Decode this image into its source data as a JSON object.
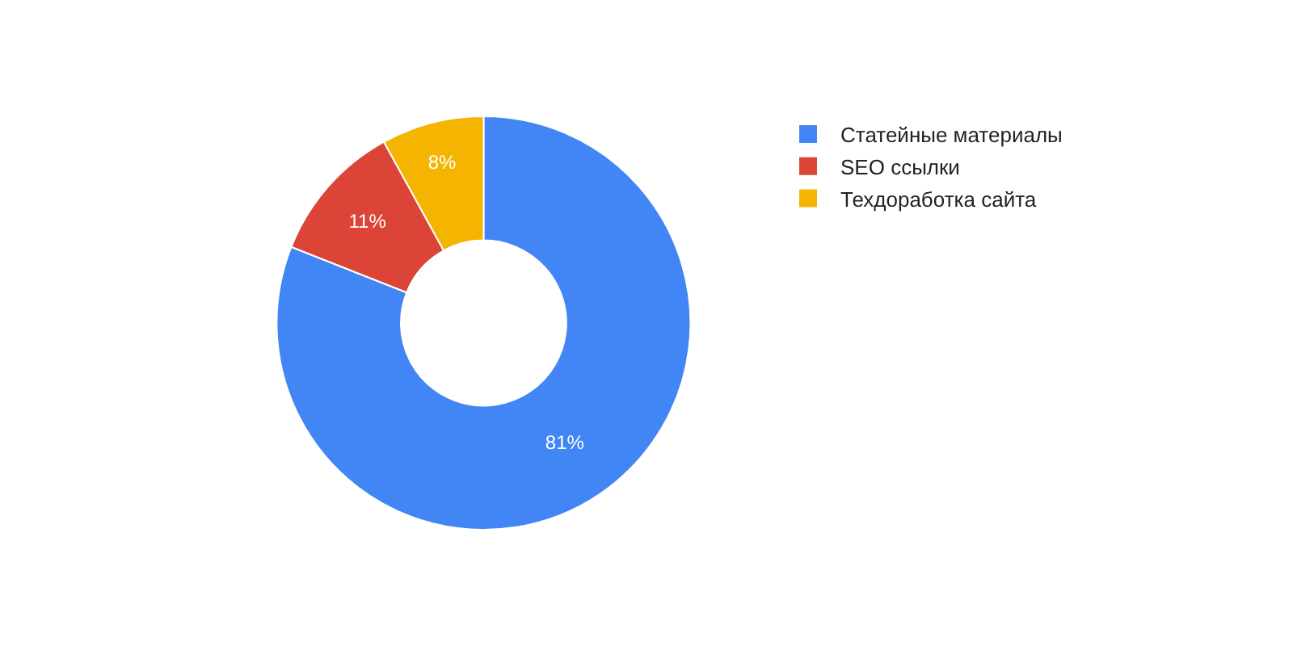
{
  "chart_data": {
    "type": "donut",
    "categories": [
      "Статейные материалы",
      "SEO ссылки",
      "Техдоработка сайта"
    ],
    "values": [
      81,
      11,
      8
    ],
    "colors": [
      "#4285f4",
      "#db4437",
      "#f4b400"
    ],
    "value_labels": [
      "81%",
      "11%",
      "8%"
    ],
    "legend": "top right"
  }
}
